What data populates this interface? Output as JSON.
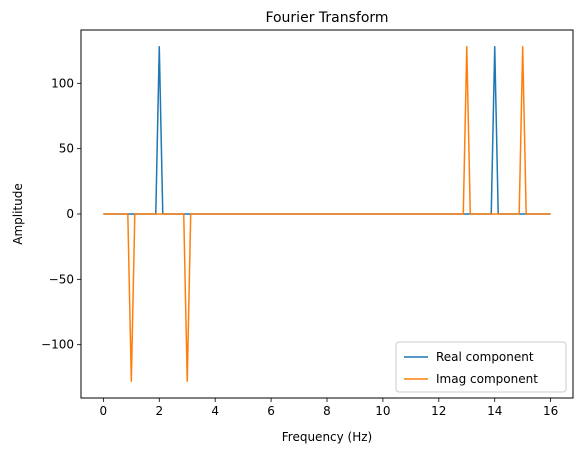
{
  "chart_data": {
    "type": "line",
    "title": "Fourier Transform",
    "xlabel": "Frequency (Hz)",
    "ylabel": "Amplitude",
    "xlim": [
      -0.8,
      16.8
    ],
    "ylim": [
      -140.8,
      140.8
    ],
    "xticks": [
      0,
      2,
      4,
      6,
      8,
      10,
      12,
      14,
      16
    ],
    "yticks": [
      -100,
      -50,
      0,
      50,
      100
    ],
    "ytick_labels": [
      "−100",
      "−50",
      "0",
      "50",
      "100"
    ],
    "legend_position": "lower right",
    "series": [
      {
        "name": "Real component",
        "color": "#1f77b4",
        "x": [
          0,
          1.875,
          2,
          2.125,
          13.875,
          14,
          14.125,
          16
        ],
        "y": [
          0,
          0,
          128,
          0,
          0,
          128,
          0,
          0
        ]
      },
      {
        "name": "Imag component",
        "color": "#ff7f0e",
        "x": [
          0,
          0.875,
          1,
          1.125,
          2.875,
          3,
          3.125,
          12.875,
          13,
          13.125,
          14.875,
          15,
          15.125,
          16
        ],
        "y": [
          0,
          0,
          -128,
          0,
          0,
          -128,
          0,
          0,
          128,
          0,
          0,
          128,
          0,
          0
        ]
      }
    ]
  }
}
